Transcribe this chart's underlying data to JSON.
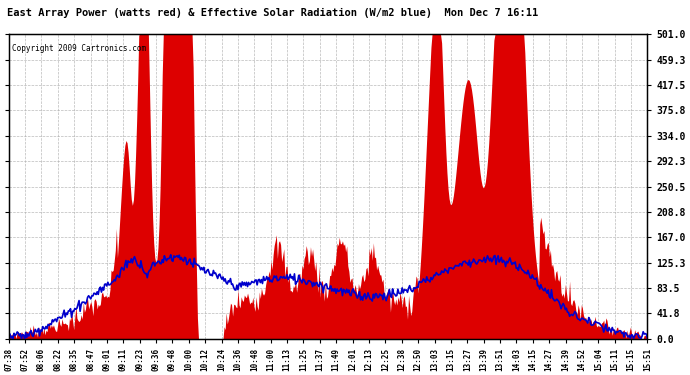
{
  "title": "East Array Power (watts red) & Effective Solar Radiation (W/m2 blue)  Mon Dec 7 16:11",
  "copyright": "Copyright 2009 Cartronics.com",
  "ylim": [
    0.0,
    501.0
  ],
  "yticks": [
    0.0,
    41.8,
    83.5,
    125.3,
    167.0,
    208.8,
    250.5,
    292.3,
    334.0,
    375.8,
    417.5,
    459.3,
    501.0
  ],
  "background_color": "#ffffff",
  "grid_color": "#aaaaaa",
  "x_labels": [
    "07:38",
    "07:52",
    "08:06",
    "08:22",
    "08:35",
    "08:47",
    "09:01",
    "09:11",
    "09:23",
    "09:36",
    "09:48",
    "10:00",
    "10:12",
    "10:24",
    "10:36",
    "10:48",
    "11:00",
    "11:13",
    "11:25",
    "11:37",
    "11:49",
    "12:01",
    "12:13",
    "12:25",
    "12:38",
    "12:50",
    "13:03",
    "13:15",
    "13:27",
    "13:39",
    "13:51",
    "14:03",
    "14:15",
    "14:27",
    "14:39",
    "14:52",
    "15:04",
    "15:11",
    "15:15",
    "15:51"
  ],
  "red_color": "#dd0000",
  "blue_color": "#0000cc"
}
